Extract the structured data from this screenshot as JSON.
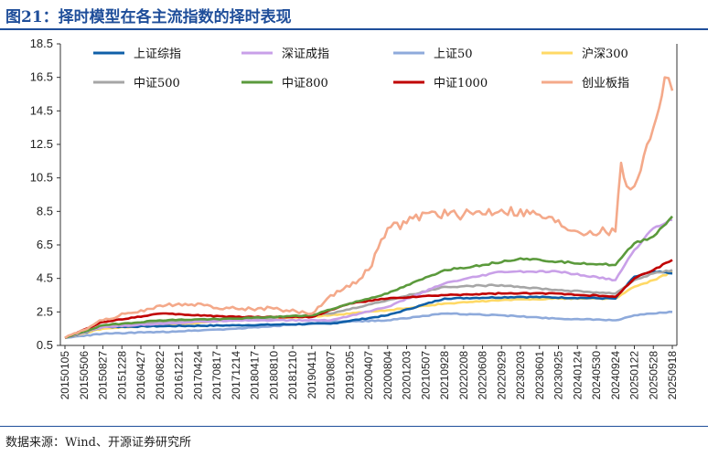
{
  "header": {
    "title": "图21：择时模型在各主流指数的择时表现"
  },
  "footer": {
    "source": "数据来源：Wind、开源证券研究所"
  },
  "chart_data": {
    "type": "line",
    "ylim": [
      0.5,
      18.5
    ],
    "y_ticks": [
      "0.5",
      "2.5",
      "4.5",
      "6.5",
      "8.5",
      "10.5",
      "12.5",
      "14.5",
      "16.5",
      "18.5"
    ],
    "x_ticks": [
      "20150105",
      "20150506",
      "20150827",
      "20151228",
      "20160427",
      "20160822",
      "20161221",
      "20170424",
      "20170817",
      "20171214",
      "20180417",
      "20180810",
      "20181210",
      "20190411",
      "20190807",
      "20191205",
      "20200407",
      "20200804",
      "20201203",
      "20210507",
      "20210928",
      "20220208",
      "20220608",
      "20220929",
      "20230203",
      "20230601",
      "20230925",
      "20240124",
      "20240530",
      "20240924",
      "20250122",
      "20250528",
      "20250918"
    ],
    "grid": false,
    "legend": "top",
    "series": [
      {
        "name": "上证综指",
        "color": "#0f5fa8",
        "values": [
          [
            0,
            0.95
          ],
          [
            2,
            1.6
          ],
          [
            5,
            1.65
          ],
          [
            9,
            1.7
          ],
          [
            14,
            1.8
          ],
          [
            17,
            2.3
          ],
          [
            20,
            3.3
          ],
          [
            24,
            3.4
          ],
          [
            29,
            3.3
          ],
          [
            30,
            4.6
          ],
          [
            31,
            4.9
          ],
          [
            32,
            4.8
          ]
        ]
      },
      {
        "name": "深证成指",
        "color": "#c9a0e8",
        "values": [
          [
            0,
            0.95
          ],
          [
            2,
            1.6
          ],
          [
            5,
            1.8
          ],
          [
            9,
            2.0
          ],
          [
            14,
            2.0
          ],
          [
            17,
            2.8
          ],
          [
            20,
            4.2
          ],
          [
            23,
            4.9
          ],
          [
            26,
            4.9
          ],
          [
            29,
            4.4
          ],
          [
            30,
            6.2
          ],
          [
            31,
            7.5
          ],
          [
            32,
            8.0
          ]
        ]
      },
      {
        "name": "上证50",
        "color": "#8eaadb",
        "values": [
          [
            0,
            0.95
          ],
          [
            2,
            1.2
          ],
          [
            5,
            1.3
          ],
          [
            9,
            1.5
          ],
          [
            14,
            1.9
          ],
          [
            17,
            2.0
          ],
          [
            20,
            2.4
          ],
          [
            23,
            2.3
          ],
          [
            26,
            2.1
          ],
          [
            29,
            2.0
          ],
          [
            30,
            2.3
          ],
          [
            31,
            2.4
          ],
          [
            32,
            2.5
          ]
        ]
      },
      {
        "name": "沪深300",
        "color": "#ffd966",
        "values": [
          [
            0,
            0.95
          ],
          [
            2,
            1.5
          ],
          [
            5,
            1.7
          ],
          [
            9,
            2.0
          ],
          [
            14,
            2.3
          ],
          [
            17,
            2.6
          ],
          [
            20,
            3.0
          ],
          [
            23,
            3.2
          ],
          [
            26,
            3.3
          ],
          [
            29,
            3.3
          ],
          [
            30,
            4.0
          ],
          [
            31,
            4.4
          ],
          [
            32,
            4.9
          ]
        ]
      },
      {
        "name": "中证500",
        "color": "#a6a6a6",
        "values": [
          [
            0,
            0.95
          ],
          [
            2,
            1.7
          ],
          [
            5,
            1.9
          ],
          [
            9,
            2.0
          ],
          [
            14,
            2.4
          ],
          [
            17,
            3.2
          ],
          [
            20,
            4.0
          ],
          [
            23,
            4.1
          ],
          [
            26,
            3.8
          ],
          [
            29,
            3.6
          ],
          [
            30,
            4.4
          ],
          [
            31,
            4.8
          ],
          [
            32,
            5.0
          ]
        ]
      },
      {
        "name": "中证800",
        "color": "#5b9a3c",
        "values": [
          [
            0,
            0.95
          ],
          [
            2,
            1.7
          ],
          [
            5,
            2.0
          ],
          [
            9,
            2.1
          ],
          [
            13,
            2.3
          ],
          [
            15,
            3.0
          ],
          [
            17,
            3.6
          ],
          [
            20,
            5.0
          ],
          [
            22,
            5.3
          ],
          [
            24,
            5.7
          ],
          [
            26,
            5.5
          ],
          [
            29,
            5.3
          ],
          [
            30,
            6.6
          ],
          [
            31,
            7.0
          ],
          [
            32,
            8.2
          ]
        ]
      },
      {
        "name": "中证1000",
        "color": "#c00000",
        "values": [
          [
            0,
            0.95
          ],
          [
            2,
            1.9
          ],
          [
            5,
            2.4
          ],
          [
            9,
            2.2
          ],
          [
            13,
            2.2
          ],
          [
            15,
            3.0
          ],
          [
            17,
            3.3
          ],
          [
            20,
            3.5
          ],
          [
            23,
            3.6
          ],
          [
            26,
            3.6
          ],
          [
            29,
            3.4
          ],
          [
            30,
            4.5
          ],
          [
            31,
            5.0
          ],
          [
            32,
            5.6
          ]
        ]
      },
      {
        "name": "创业板指",
        "color": "#f4a98a",
        "values": [
          [
            0,
            0.95
          ],
          [
            2,
            2.0
          ],
          [
            4,
            2.6
          ],
          [
            6,
            3.0
          ],
          [
            9,
            2.7
          ],
          [
            11,
            2.7
          ],
          [
            13,
            2.4
          ],
          [
            14,
            3.5
          ],
          [
            15,
            4.0
          ],
          [
            16,
            5.0
          ],
          [
            17,
            7.5
          ],
          [
            18,
            7.8
          ],
          [
            19,
            8.4
          ],
          [
            21,
            8.3
          ],
          [
            23,
            8.6
          ],
          [
            25,
            8.3
          ],
          [
            27,
            7.3
          ],
          [
            29,
            7.3
          ],
          [
            29.3,
            11.4
          ],
          [
            29.6,
            10.0
          ],
          [
            30,
            10.0
          ],
          [
            31,
            13.5
          ],
          [
            31.6,
            16.5
          ],
          [
            32,
            15.7
          ]
        ]
      }
    ]
  }
}
